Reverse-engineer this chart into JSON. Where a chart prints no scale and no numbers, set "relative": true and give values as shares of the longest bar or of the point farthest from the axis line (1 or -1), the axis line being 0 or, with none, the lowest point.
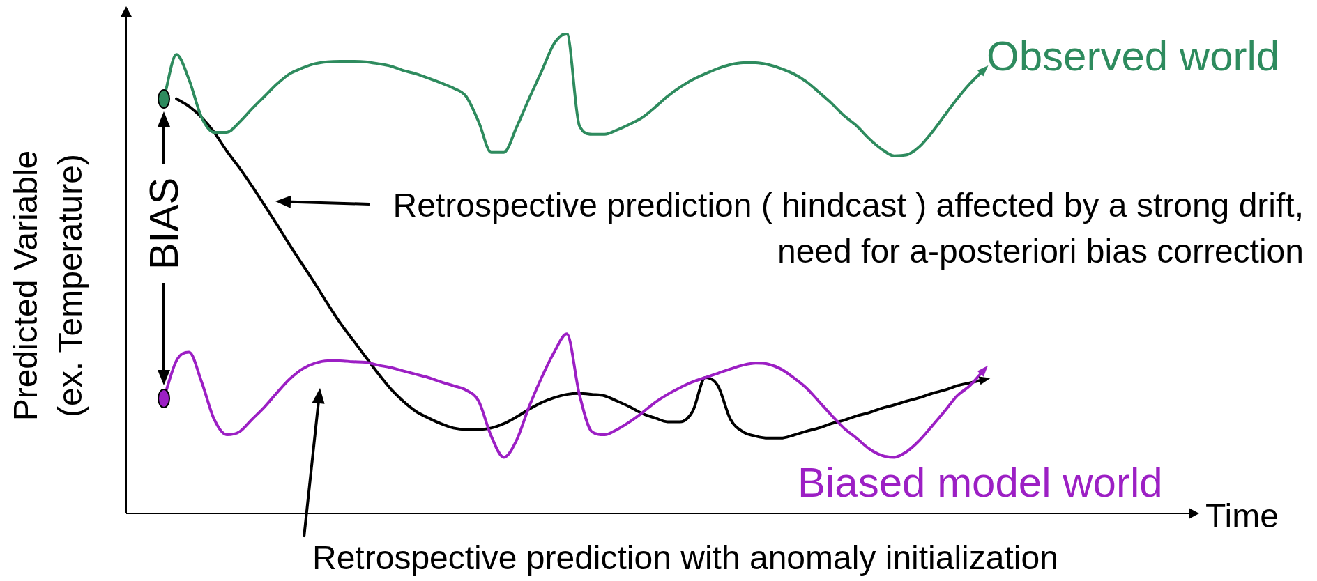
{
  "chart_data": {
    "type": "line",
    "relative": true,
    "ylabel": "Predicted Variable (ex. Temperature)",
    "legend": false,
    "marker": "none",
    "line_style": "solid",
    "categories": [
      null,
      null,
      null,
      null,
      null,
      null,
      null,
      null,
      null,
      null,
      null,
      null,
      null,
      null,
      null,
      null,
      null,
      null,
      null,
      null,
      null,
      null,
      null,
      null,
      null,
      null,
      null,
      null,
      null,
      null,
      null,
      null,
      null,
      null,
      null,
      null,
      null,
      null,
      null,
      null,
      null,
      null,
      null,
      null,
      null,
      null,
      null,
      null,
      null,
      null,
      null,
      null,
      null,
      null,
      null,
      null,
      null,
      null,
      null,
      null,
      null,
      null,
      null,
      null,
      null,
      null
    ],
    "series": [
      {
        "name": "Observed world",
        "color": "#2e8b5e",
        "values": [
          0.864,
          0.956,
          0.904,
          0.825,
          0.794,
          0.794,
          0.815,
          0.843,
          0.869,
          0.895,
          0.916,
          0.928,
          0.937,
          0.941,
          0.942,
          0.942,
          0.941,
          0.937,
          0.932,
          0.923,
          0.916,
          0.907,
          0.897,
          0.886,
          0.869,
          0.816,
          0.752,
          0.752,
          0.804,
          0.864,
          0.921,
          0.979,
          1,
          0.808,
          0.79,
          0.79,
          0.799,
          0.811,
          0.825,
          0.846,
          0.869,
          0.888,
          0.904,
          0.916,
          0.927,
          0.935,
          0.939,
          0.939,
          0.935,
          0.927,
          0.916,
          0.9,
          0.878,
          0.855,
          0.829,
          0.808,
          0.781,
          0.759,
          0.745,
          0.747,
          0.764,
          0.794,
          0.829,
          0.864,
          0.895,
          0.921
        ]
      },
      {
        "name": "Biased model world",
        "color": "#9c1fc4",
        "values": [
          0.24,
          0.318,
          0.336,
          0.274,
          0.196,
          0.164,
          0.17,
          0.196,
          0.222,
          0.252,
          0.28,
          0.301,
          0.313,
          0.318,
          0.318,
          0.316,
          0.315,
          0.309,
          0.304,
          0.297,
          0.29,
          0.283,
          0.274,
          0.266,
          0.257,
          0.234,
          0.161,
          0.117,
          0.152,
          0.222,
          0.283,
          0.336,
          0.374,
          0.248,
          0.17,
          0.164,
          0.175,
          0.191,
          0.21,
          0.231,
          0.248,
          0.262,
          0.274,
          0.283,
          0.292,
          0.301,
          0.309,
          0.313,
          0.311,
          0.301,
          0.283,
          0.262,
          0.234,
          0.205,
          0.178,
          0.157,
          0.135,
          0.121,
          0.117,
          0.129,
          0.152,
          0.182,
          0.213,
          0.245,
          0.266,
          0.295
        ]
      },
      {
        "color": "#000000",
        "values": [
          null,
          0.864,
          0.848,
          0.825,
          0.794,
          0.755,
          0.72,
          0.682,
          0.642,
          0.601,
          0.559,
          0.519,
          0.479,
          0.437,
          0.397,
          0.362,
          0.327,
          0.292,
          0.26,
          0.234,
          0.213,
          0.199,
          0.187,
          0.178,
          0.175,
          0.175,
          0.178,
          0.187,
          0.201,
          0.217,
          0.231,
          0.241,
          0.248,
          0.25,
          0.248,
          0.245,
          0.234,
          0.222,
          0.208,
          0.199,
          0.191,
          0.191,
          0.213,
          0.283,
          0.266,
          0.196,
          0.17,
          0.161,
          0.157,
          0.157,
          0.163,
          0.171,
          0.178,
          0.187,
          0.194,
          0.203,
          0.21,
          0.219,
          0.226,
          0.234,
          0.241,
          0.25,
          0.257,
          0.266,
          0.272,
          0.278
        ]
      }
    ],
    "annotations": [
      "BIAS",
      "Retrospective prediction ( hindcast ) affected by a strong drift, need for a-posteriori bias correction",
      "Retrospective prediction with anomaly initialization",
      "Time"
    ]
  }
}
